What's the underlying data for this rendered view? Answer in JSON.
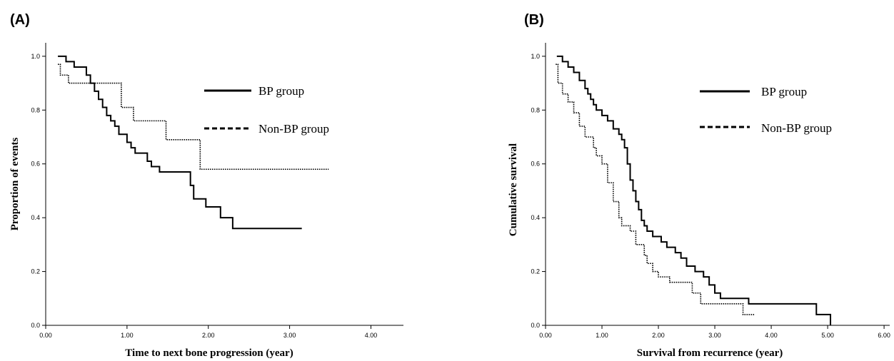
{
  "chart_data": [
    {
      "panel": "(A)",
      "type": "line",
      "step": true,
      "xlabel": "Time to next bone progression (year)",
      "ylabel": "Proportion of events",
      "xlim": [
        0,
        4.4
      ],
      "ylim": [
        0,
        1.05
      ],
      "xticks": [
        "0.00",
        "1.00",
        "2.00",
        "3.00",
        "4.00"
      ],
      "xtick_values": [
        0,
        1,
        2,
        3,
        4
      ],
      "yticks": [
        "0.0",
        "0.2",
        "0.4",
        "0.6",
        "0.8",
        "1.0"
      ],
      "ytick_values": [
        0,
        0.2,
        0.4,
        0.6,
        0.8,
        1.0
      ],
      "legend": [
        {
          "label": "BP group",
          "style": "solid"
        },
        {
          "label": "Non-BP group",
          "style": "dashed"
        }
      ],
      "series": [
        {
          "name": "BP group",
          "style": "solid",
          "color": "#000000",
          "x": [
            0.15,
            0.25,
            0.35,
            0.5,
            0.55,
            0.6,
            0.65,
            0.7,
            0.75,
            0.8,
            0.85,
            0.9,
            1.0,
            1.05,
            1.1,
            1.25,
            1.3,
            1.4,
            1.78,
            1.82,
            1.97,
            2.15,
            2.3,
            3.15
          ],
          "y": [
            1.0,
            0.98,
            0.96,
            0.93,
            0.9,
            0.87,
            0.84,
            0.81,
            0.78,
            0.76,
            0.74,
            0.71,
            0.68,
            0.66,
            0.64,
            0.61,
            0.59,
            0.57,
            0.52,
            0.47,
            0.44,
            0.4,
            0.36,
            0.36
          ]
        },
        {
          "name": "Non-BP group",
          "style": "dotted",
          "color": "#000000",
          "x": [
            0.15,
            0.18,
            0.28,
            0.85,
            0.93,
            1.08,
            1.48,
            1.9,
            3.48
          ],
          "y": [
            0.97,
            0.93,
            0.9,
            0.9,
            0.81,
            0.76,
            0.69,
            0.58,
            0.58
          ]
        }
      ]
    },
    {
      "panel": "(B)",
      "type": "line",
      "step": true,
      "xlabel": "Survival from recurrence (year)",
      "ylabel": "Cumulative survival",
      "xlim": [
        0,
        6.1
      ],
      "ylim": [
        0,
        1.05
      ],
      "xticks": [
        "0.00",
        "1.00",
        "2.00",
        "3.00",
        "4.00",
        "5.00",
        "6.00"
      ],
      "xtick_values": [
        0,
        1,
        2,
        3,
        4,
        5,
        6
      ],
      "yticks": [
        "0.0",
        "0.2",
        "0.4",
        "0.6",
        "0.8",
        "1.0"
      ],
      "ytick_values": [
        0,
        0.2,
        0.4,
        0.6,
        0.8,
        1.0
      ],
      "legend": [
        {
          "label": "BP group",
          "style": "solid"
        },
        {
          "label": "Non-BP group",
          "style": "dashed"
        }
      ],
      "series": [
        {
          "name": "BP group",
          "style": "solid",
          "color": "#000000",
          "x": [
            0.2,
            0.3,
            0.4,
            0.5,
            0.6,
            0.7,
            0.75,
            0.8,
            0.85,
            0.9,
            1.0,
            1.1,
            1.2,
            1.3,
            1.35,
            1.4,
            1.45,
            1.5,
            1.55,
            1.6,
            1.65,
            1.7,
            1.75,
            1.8,
            1.9,
            2.05,
            2.15,
            2.3,
            2.4,
            2.5,
            2.65,
            2.8,
            2.9,
            3.0,
            3.1,
            3.6,
            4.8,
            5.05
          ],
          "y": [
            1.0,
            0.98,
            0.96,
            0.94,
            0.91,
            0.88,
            0.86,
            0.84,
            0.82,
            0.8,
            0.78,
            0.76,
            0.73,
            0.71,
            0.69,
            0.66,
            0.6,
            0.54,
            0.5,
            0.46,
            0.43,
            0.39,
            0.37,
            0.35,
            0.33,
            0.31,
            0.29,
            0.27,
            0.25,
            0.22,
            0.2,
            0.18,
            0.15,
            0.12,
            0.1,
            0.08,
            0.04,
            0.0
          ]
        },
        {
          "name": "Non-BP group",
          "style": "dotted",
          "color": "#000000",
          "x": [
            0.18,
            0.22,
            0.3,
            0.4,
            0.5,
            0.6,
            0.7,
            0.85,
            0.9,
            1.0,
            1.1,
            1.2,
            1.3,
            1.35,
            1.5,
            1.6,
            1.75,
            1.8,
            1.9,
            2.0,
            2.2,
            2.6,
            2.75,
            2.8,
            3.5,
            3.7
          ],
          "y": [
            0.97,
            0.9,
            0.86,
            0.83,
            0.79,
            0.74,
            0.7,
            0.66,
            0.63,
            0.6,
            0.53,
            0.46,
            0.4,
            0.37,
            0.35,
            0.3,
            0.26,
            0.23,
            0.2,
            0.18,
            0.16,
            0.12,
            0.08,
            0.08,
            0.04,
            0.04
          ]
        }
      ]
    }
  ]
}
